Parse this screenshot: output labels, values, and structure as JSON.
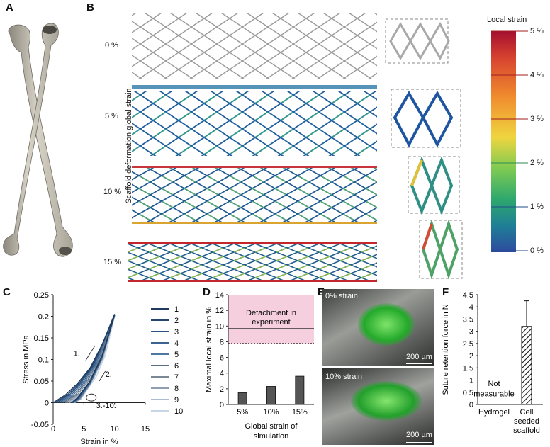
{
  "panels": {
    "A": {
      "letter": "A"
    },
    "B": {
      "letter": "B",
      "ylabel": "Scaffold deformation global strain",
      "rows": [
        "0 %",
        "5 %",
        "10 %",
        "15 %"
      ],
      "colorbar_title": "Local strain",
      "colorbar_ticks": [
        "5 %",
        "4 %",
        "3 %",
        "2 %",
        "1 %",
        "0 %"
      ]
    },
    "C": {
      "letter": "C"
    },
    "D": {
      "letter": "D",
      "band_label_line1": "Detachment in",
      "band_label_line2": "experiment"
    },
    "E": {
      "letter": "E",
      "top_label": "0% strain",
      "bottom_label": "10% strain",
      "scalebar_top": "200 µm",
      "scalebar_bottom": "200 µm"
    },
    "F": {
      "letter": "F",
      "not_measurable_line1": "Not",
      "not_measurable_line2": "measurable"
    }
  },
  "chart_data": [
    {
      "panel": "C",
      "type": "line",
      "xlabel": "Strain in %",
      "ylabel": "Stress in MPa",
      "xlim": [
        0,
        15
      ],
      "ylim": [
        -0.05,
        0.25
      ],
      "xticks": [
        "0",
        "5",
        "10",
        "15"
      ],
      "yticks": [
        "-0.05",
        "0",
        "0.05",
        "0.1",
        "0.15",
        "0.2",
        "0.25"
      ],
      "legend": [
        "1",
        "2",
        "3",
        "4",
        "5",
        "6",
        "7",
        "8",
        "9",
        "10"
      ],
      "legend_colors": [
        "#1f3a5f",
        "#24456f",
        "#2b527f",
        "#3a6390",
        "#4d76a0",
        "#5b6f86",
        "#7a8796",
        "#8f9fb4",
        "#a9bcd1",
        "#c6d6e6"
      ],
      "annotations": [
        "1.",
        "2.",
        "3.-10."
      ],
      "series": [
        {
          "name": "1",
          "loading": [
            [
              0,
              0
            ],
            [
              2,
              0.018
            ],
            [
              4,
              0.045
            ],
            [
              6,
              0.08
            ],
            [
              8,
              0.135
            ],
            [
              10,
              0.205
            ]
          ],
          "unloading": [
            [
              10,
              0.205
            ],
            [
              8,
              0.11
            ],
            [
              6,
              0.05
            ],
            [
              4,
              0.012
            ],
            [
              3,
              0
            ]
          ]
        },
        {
          "name": "10",
          "loading": [
            [
              3,
              0
            ],
            [
              5,
              0.02
            ],
            [
              7,
              0.06
            ],
            [
              8.5,
              0.11
            ],
            [
              10,
              0.2
            ]
          ],
          "unloading": [
            [
              10,
              0.2
            ],
            [
              8,
              0.1
            ],
            [
              6,
              0.04
            ],
            [
              4.5,
              0.008
            ],
            [
              3.5,
              0
            ]
          ]
        }
      ]
    },
    {
      "panel": "D",
      "type": "bar",
      "xlabel_line1": "Global strain of",
      "xlabel_line2": "simulation",
      "ylabel_line1": "Maximal  local strain in %",
      "categories": [
        "5%",
        "10%",
        "15%"
      ],
      "values": [
        1.5,
        2.3,
        3.6
      ],
      "ylim": [
        0,
        14
      ],
      "yticks": [
        "0",
        "2",
        "4",
        "6",
        "8",
        "10",
        "12",
        "14"
      ],
      "band": {
        "from": 7.8,
        "to": 14,
        "line": 9.7
      }
    },
    {
      "panel": "F",
      "type": "bar",
      "ylabel": "Suture retention force in N",
      "categories": [
        "Hydrogel",
        "Cell seeded scaffold"
      ],
      "category_lines": [
        [
          "Hydrogel"
        ],
        [
          "Cell",
          "seeded",
          "scaffold"
        ]
      ],
      "values": [
        0,
        3.2
      ],
      "error": [
        0,
        1.05
      ],
      "ylim": [
        0,
        4.5
      ],
      "yticks": [
        "0",
        "0.5",
        "1",
        "1.5",
        "2",
        "2.5",
        "3",
        "3.5",
        "4",
        "4.5"
      ]
    }
  ]
}
